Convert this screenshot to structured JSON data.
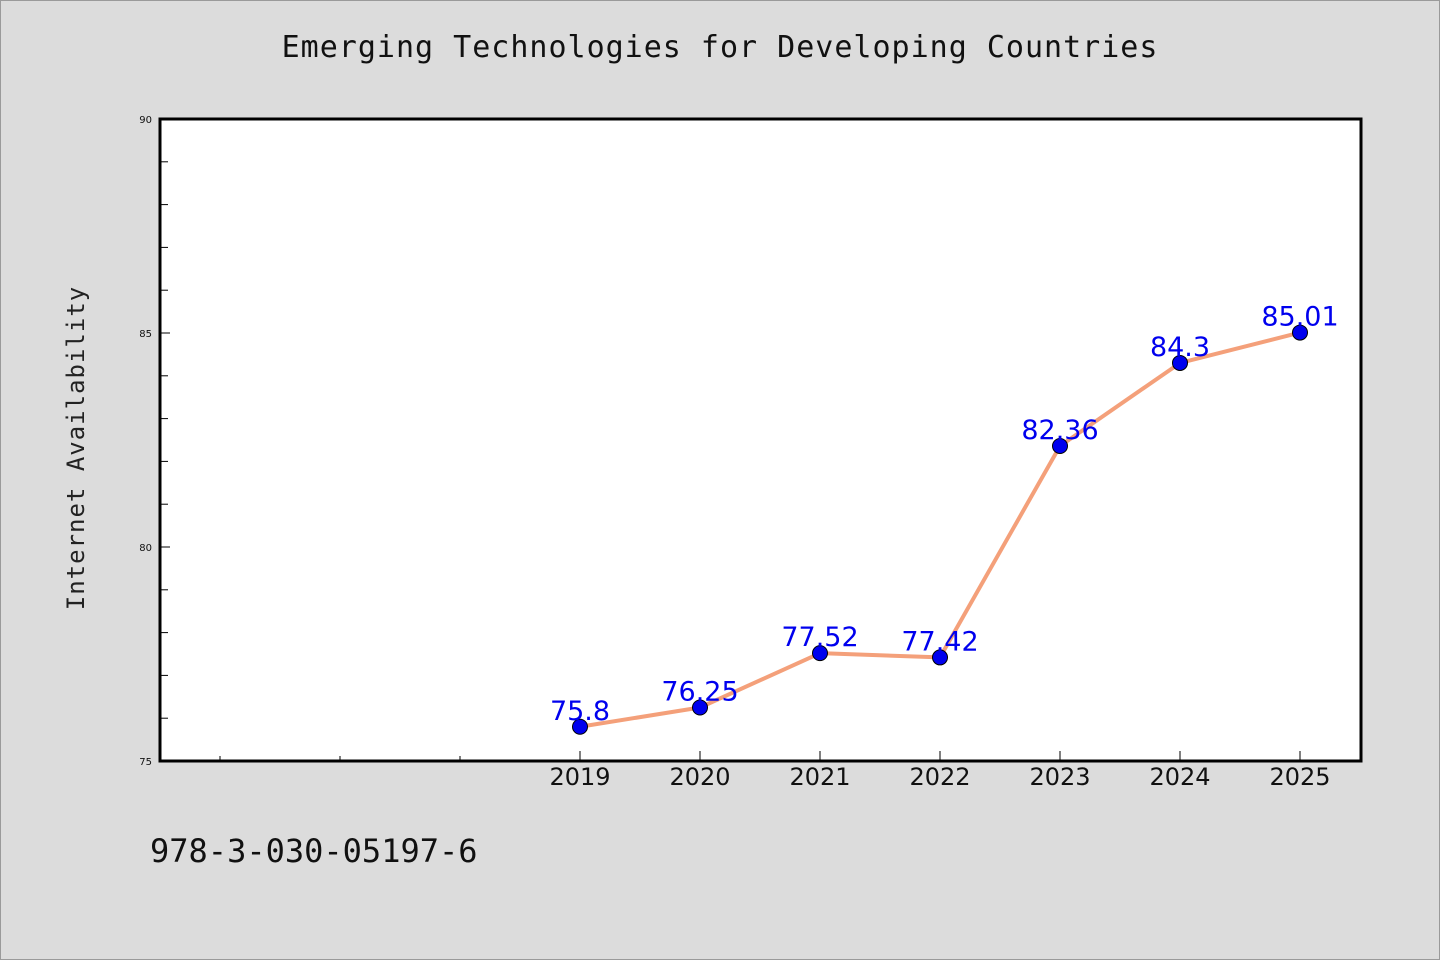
{
  "chart_data": {
    "type": "line",
    "title": "Emerging Technologies for Developing Countries",
    "xlabel": "",
    "ylabel": "Internet Availability",
    "x": [
      "2019",
      "2020",
      "2021",
      "2022",
      "2023",
      "2024",
      "2025"
    ],
    "series": [
      {
        "values": [
          75.8,
          76.25,
          77.52,
          77.42,
          82.36,
          84.3,
          85.01
        ],
        "labels": [
          "75.8",
          "76.25",
          "77.52",
          "77.42",
          "82.36",
          "84.3",
          "85.01"
        ],
        "line_color": "#f4a07a",
        "marker_color": "#0000ee"
      }
    ],
    "ylim": [
      75,
      90
    ],
    "yticks": [
      "75",
      "80",
      "85",
      "90"
    ],
    "grid": false,
    "legend": "none"
  },
  "footer": {
    "code": "978-3-030-05197-6"
  },
  "colors": {
    "background": "#dcdcdc",
    "plot_area": "#ffffff",
    "data_label": "#0000ee"
  }
}
